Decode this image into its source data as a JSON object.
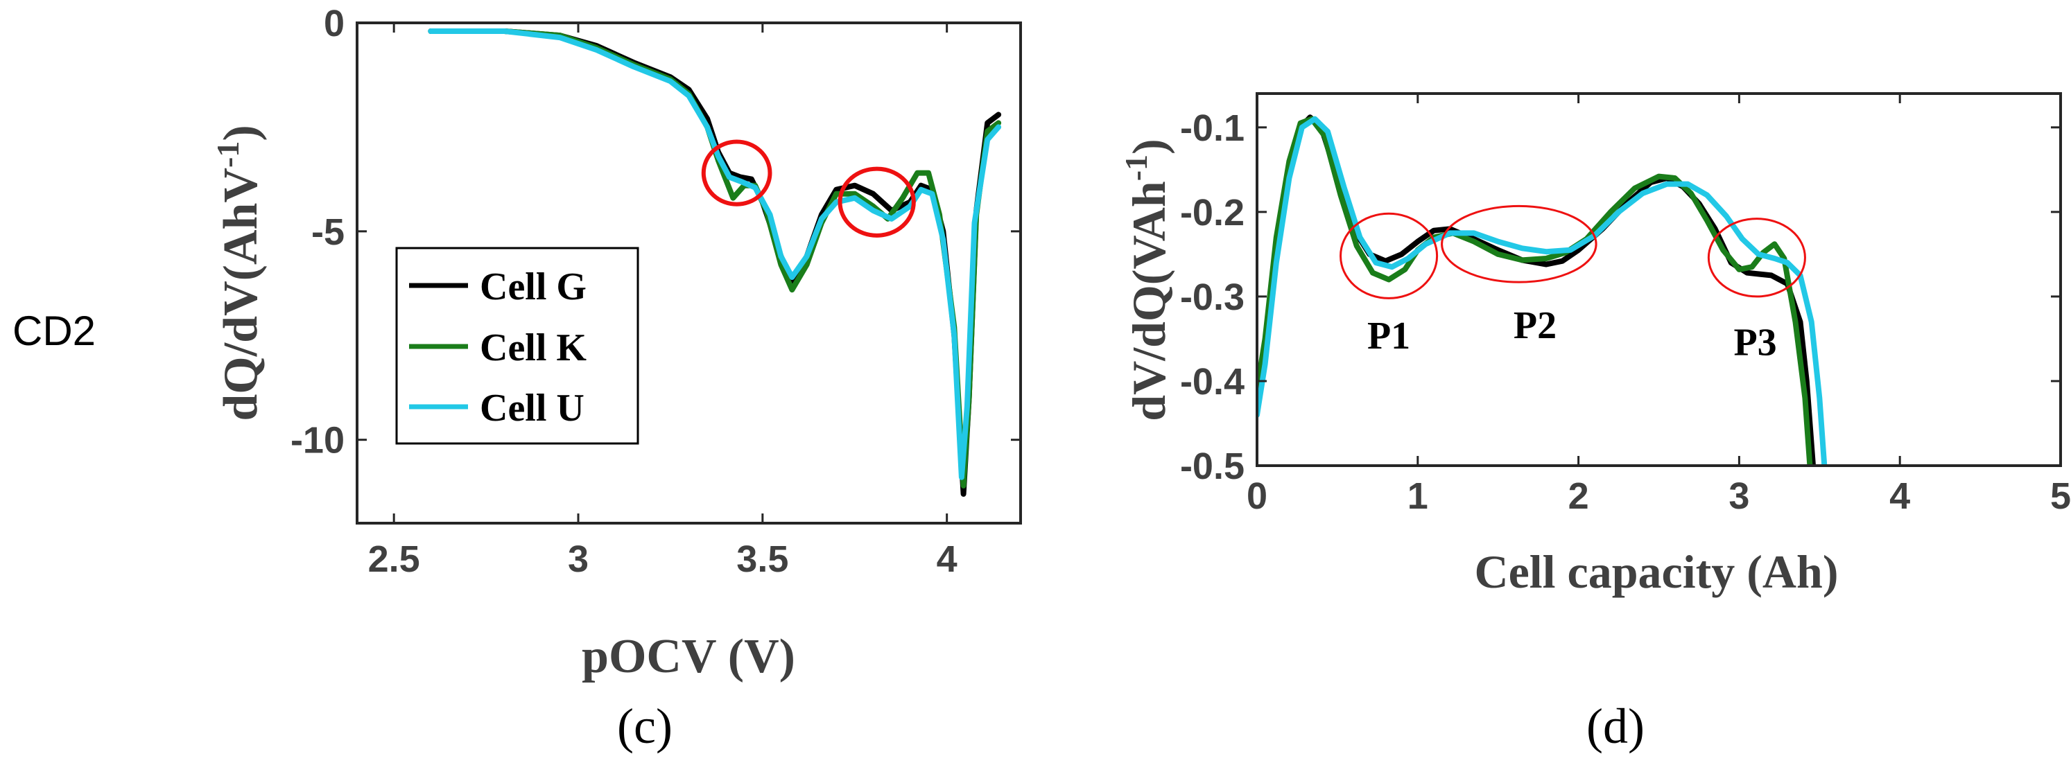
{
  "row_label": "CD2",
  "colors": {
    "cell_g": "#000000",
    "cell_k": "#1a7d1a",
    "cell_u": "#22c8e6",
    "annotation": "#ee1111"
  },
  "chart_data": [
    {
      "id": "c",
      "type": "line",
      "panel_label": "(c)",
      "xlabel": "pOCV (V)",
      "ylabel": "dQ/dV(AhV",
      "ylabel_sup": "-1",
      "ylabel_close": ")",
      "xlim": [
        2.4,
        4.2
      ],
      "ylim": [
        -12,
        0
      ],
      "xticks": [
        2.5,
        3,
        3.5,
        4
      ],
      "xtick_labels": [
        "2.5",
        "3",
        "3.5",
        "4"
      ],
      "yticks": [
        0,
        -5,
        -10
      ],
      "ytick_labels": [
        "0",
        "-5",
        "-10"
      ],
      "legend": {
        "position": "lower-left",
        "entries": [
          "Cell G",
          "Cell K",
          "Cell U"
        ]
      },
      "annotations": [
        {
          "shape": "circle",
          "center": [
            3.43,
            -3.6
          ],
          "radius_x": 0.09,
          "radius_y": 0.75
        },
        {
          "shape": "circle",
          "center": [
            3.81,
            -4.3
          ],
          "radius_x": 0.1,
          "radius_y": 0.8
        }
      ],
      "series": [
        {
          "name": "Cell G",
          "points": [
            [
              2.6,
              -0.2
            ],
            [
              2.8,
              -0.2
            ],
            [
              2.95,
              -0.3
            ],
            [
              3.05,
              -0.55
            ],
            [
              3.15,
              -0.95
            ],
            [
              3.25,
              -1.3
            ],
            [
              3.3,
              -1.6
            ],
            [
              3.35,
              -2.3
            ],
            [
              3.38,
              -3.1
            ],
            [
              3.41,
              -3.6
            ],
            [
              3.44,
              -3.7
            ],
            [
              3.47,
              -3.75
            ],
            [
              3.5,
              -4.3
            ],
            [
              3.55,
              -5.6
            ],
            [
              3.58,
              -6.2
            ],
            [
              3.62,
              -5.6
            ],
            [
              3.66,
              -4.6
            ],
            [
              3.7,
              -4.0
            ],
            [
              3.75,
              -3.9
            ],
            [
              3.8,
              -4.1
            ],
            [
              3.85,
              -4.5
            ],
            [
              3.9,
              -4.3
            ],
            [
              3.93,
              -3.9
            ],
            [
              3.96,
              -4.0
            ],
            [
              3.99,
              -5.0
            ],
            [
              4.02,
              -7.5
            ],
            [
              4.045,
              -11.3
            ],
            [
              4.06,
              -9.0
            ],
            [
              4.08,
              -4.5
            ],
            [
              4.11,
              -2.4
            ],
            [
              4.14,
              -2.2
            ]
          ]
        },
        {
          "name": "Cell K",
          "points": [
            [
              2.6,
              -0.2
            ],
            [
              2.8,
              -0.2
            ],
            [
              2.95,
              -0.3
            ],
            [
              3.05,
              -0.6
            ],
            [
              3.15,
              -1.0
            ],
            [
              3.25,
              -1.35
            ],
            [
              3.3,
              -1.7
            ],
            [
              3.35,
              -2.5
            ],
            [
              3.38,
              -3.3
            ],
            [
              3.42,
              -4.2
            ],
            [
              3.45,
              -3.9
            ],
            [
              3.48,
              -3.9
            ],
            [
              3.51,
              -4.5
            ],
            [
              3.55,
              -5.8
            ],
            [
              3.58,
              -6.4
            ],
            [
              3.62,
              -5.8
            ],
            [
              3.66,
              -4.8
            ],
            [
              3.7,
              -4.1
            ],
            [
              3.75,
              -4.1
            ],
            [
              3.8,
              -4.4
            ],
            [
              3.84,
              -4.7
            ],
            [
              3.88,
              -4.2
            ],
            [
              3.92,
              -3.6
            ],
            [
              3.95,
              -3.6
            ],
            [
              3.98,
              -4.6
            ],
            [
              4.02,
              -7.3
            ],
            [
              4.045,
              -11.1
            ],
            [
              4.06,
              -9.0
            ],
            [
              4.08,
              -4.6
            ],
            [
              4.11,
              -2.6
            ],
            [
              4.14,
              -2.4
            ]
          ]
        },
        {
          "name": "Cell U",
          "points": [
            [
              2.6,
              -0.2
            ],
            [
              2.8,
              -0.2
            ],
            [
              2.95,
              -0.35
            ],
            [
              3.05,
              -0.65
            ],
            [
              3.15,
              -1.05
            ],
            [
              3.25,
              -1.4
            ],
            [
              3.3,
              -1.75
            ],
            [
              3.35,
              -2.5
            ],
            [
              3.38,
              -3.2
            ],
            [
              3.41,
              -3.7
            ],
            [
              3.44,
              -3.8
            ],
            [
              3.48,
              -3.95
            ],
            [
              3.52,
              -4.6
            ],
            [
              3.55,
              -5.6
            ],
            [
              3.58,
              -6.1
            ],
            [
              3.62,
              -5.6
            ],
            [
              3.66,
              -4.7
            ],
            [
              3.7,
              -4.3
            ],
            [
              3.75,
              -4.2
            ],
            [
              3.8,
              -4.5
            ],
            [
              3.85,
              -4.7
            ],
            [
              3.9,
              -4.4
            ],
            [
              3.93,
              -4.0
            ],
            [
              3.96,
              -4.1
            ],
            [
              3.99,
              -5.2
            ],
            [
              4.02,
              -7.5
            ],
            [
              4.04,
              -10.9
            ],
            [
              4.055,
              -9.2
            ],
            [
              4.075,
              -4.8
            ],
            [
              4.11,
              -2.8
            ],
            [
              4.14,
              -2.5
            ]
          ]
        }
      ]
    },
    {
      "id": "d",
      "type": "line",
      "panel_label": "(d)",
      "xlabel": "Cell capacity (Ah)",
      "ylabel": "dV/dQ(VAh",
      "ylabel_sup": "-1",
      "ylabel_close": ")",
      "xlim": [
        0,
        5
      ],
      "ylim": [
        -0.5,
        -0.06
      ],
      "xticks": [
        0,
        1,
        2,
        3,
        4,
        5
      ],
      "xtick_labels": [
        "0",
        "1",
        "2",
        "3",
        "4",
        "5"
      ],
      "yticks": [
        -0.1,
        -0.2,
        -0.3,
        -0.4,
        -0.5
      ],
      "ytick_labels": [
        "-0.1",
        "-0.2",
        "-0.3",
        "-0.4",
        "-0.5"
      ],
      "annotations": [
        {
          "shape": "ellipse",
          "label": "P1",
          "center": [
            0.82,
            -0.252
          ],
          "radius_x": 0.3,
          "radius_y": 0.05,
          "label_at": [
            0.82,
            -0.345
          ]
        },
        {
          "shape": "ellipse",
          "label": "P2",
          "center": [
            1.63,
            -0.238
          ],
          "radius_x": 0.48,
          "radius_y": 0.045,
          "label_at": [
            1.73,
            -0.333
          ]
        },
        {
          "shape": "ellipse",
          "label": "P3",
          "center": [
            3.11,
            -0.254
          ],
          "radius_x": 0.3,
          "radius_y": 0.046,
          "label_at": [
            3.1,
            -0.353
          ]
        }
      ],
      "series": [
        {
          "name": "Cell G",
          "points": [
            [
              0,
              -0.43
            ],
            [
              0.05,
              -0.36
            ],
            [
              0.12,
              -0.24
            ],
            [
              0.2,
              -0.15
            ],
            [
              0.27,
              -0.1
            ],
            [
              0.33,
              -0.088
            ],
            [
              0.4,
              -0.1
            ],
            [
              0.5,
              -0.16
            ],
            [
              0.6,
              -0.22
            ],
            [
              0.7,
              -0.25
            ],
            [
              0.8,
              -0.258
            ],
            [
              0.9,
              -0.25
            ],
            [
              1.0,
              -0.235
            ],
            [
              1.1,
              -0.222
            ],
            [
              1.2,
              -0.22
            ],
            [
              1.35,
              -0.232
            ],
            [
              1.5,
              -0.245
            ],
            [
              1.65,
              -0.257
            ],
            [
              1.8,
              -0.262
            ],
            [
              1.9,
              -0.258
            ],
            [
              2.0,
              -0.245
            ],
            [
              2.15,
              -0.22
            ],
            [
              2.3,
              -0.19
            ],
            [
              2.45,
              -0.165
            ],
            [
              2.55,
              -0.16
            ],
            [
              2.65,
              -0.17
            ],
            [
              2.75,
              -0.19
            ],
            [
              2.85,
              -0.22
            ],
            [
              2.95,
              -0.26
            ],
            [
              3.05,
              -0.272
            ],
            [
              3.2,
              -0.275
            ],
            [
              3.3,
              -0.285
            ],
            [
              3.38,
              -0.33
            ],
            [
              3.42,
              -0.4
            ],
            [
              3.46,
              -0.5
            ]
          ]
        },
        {
          "name": "Cell K",
          "points": [
            [
              0,
              -0.41
            ],
            [
              0.05,
              -0.35
            ],
            [
              0.12,
              -0.23
            ],
            [
              0.2,
              -0.14
            ],
            [
              0.27,
              -0.095
            ],
            [
              0.34,
              -0.09
            ],
            [
              0.42,
              -0.11
            ],
            [
              0.52,
              -0.18
            ],
            [
              0.62,
              -0.24
            ],
            [
              0.72,
              -0.272
            ],
            [
              0.82,
              -0.28
            ],
            [
              0.92,
              -0.268
            ],
            [
              1.0,
              -0.245
            ],
            [
              1.1,
              -0.23
            ],
            [
              1.22,
              -0.225
            ],
            [
              1.35,
              -0.235
            ],
            [
              1.5,
              -0.25
            ],
            [
              1.65,
              -0.257
            ],
            [
              1.8,
              -0.255
            ],
            [
              1.92,
              -0.248
            ],
            [
              2.05,
              -0.232
            ],
            [
              2.2,
              -0.2
            ],
            [
              2.35,
              -0.172
            ],
            [
              2.5,
              -0.158
            ],
            [
              2.6,
              -0.16
            ],
            [
              2.7,
              -0.178
            ],
            [
              2.8,
              -0.21
            ],
            [
              2.9,
              -0.245
            ],
            [
              3.0,
              -0.268
            ],
            [
              3.08,
              -0.265
            ],
            [
              3.15,
              -0.248
            ],
            [
              3.22,
              -0.238
            ],
            [
              3.28,
              -0.255
            ],
            [
              3.35,
              -0.33
            ],
            [
              3.41,
              -0.42
            ],
            [
              3.44,
              -0.5
            ]
          ]
        },
        {
          "name": "Cell U",
          "points": [
            [
              0,
              -0.44
            ],
            [
              0.05,
              -0.38
            ],
            [
              0.12,
              -0.26
            ],
            [
              0.2,
              -0.16
            ],
            [
              0.28,
              -0.1
            ],
            [
              0.36,
              -0.09
            ],
            [
              0.44,
              -0.105
            ],
            [
              0.54,
              -0.17
            ],
            [
              0.64,
              -0.23
            ],
            [
              0.74,
              -0.26
            ],
            [
              0.84,
              -0.265
            ],
            [
              0.94,
              -0.255
            ],
            [
              1.05,
              -0.238
            ],
            [
              1.2,
              -0.225
            ],
            [
              1.35,
              -0.225
            ],
            [
              1.5,
              -0.235
            ],
            [
              1.65,
              -0.243
            ],
            [
              1.8,
              -0.247
            ],
            [
              1.95,
              -0.245
            ],
            [
              2.1,
              -0.228
            ],
            [
              2.25,
              -0.2
            ],
            [
              2.4,
              -0.178
            ],
            [
              2.55,
              -0.167
            ],
            [
              2.68,
              -0.167
            ],
            [
              2.8,
              -0.18
            ],
            [
              2.92,
              -0.205
            ],
            [
              3.02,
              -0.232
            ],
            [
              3.12,
              -0.25
            ],
            [
              3.22,
              -0.255
            ],
            [
              3.3,
              -0.26
            ],
            [
              3.38,
              -0.275
            ],
            [
              3.45,
              -0.33
            ],
            [
              3.5,
              -0.42
            ],
            [
              3.53,
              -0.5
            ]
          ]
        }
      ]
    }
  ]
}
